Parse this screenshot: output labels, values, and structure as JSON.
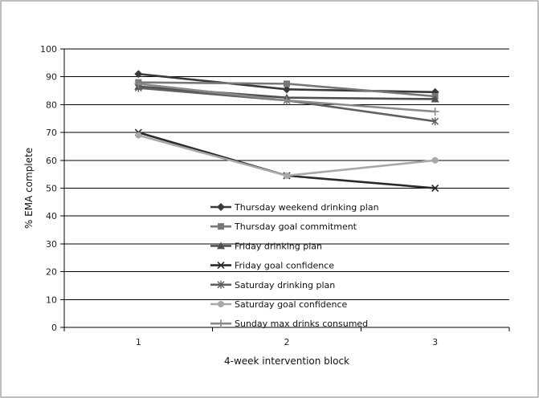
{
  "chart_data": {
    "type": "line",
    "title": "",
    "xlabel": "4-week intervention block",
    "ylabel": "% EMA  complete",
    "x": [
      1,
      2,
      3
    ],
    "x_tick_labels": [
      "1",
      "2",
      "3"
    ],
    "ylim": [
      0,
      100
    ],
    "y_ticks": [
      0,
      10,
      20,
      30,
      40,
      50,
      60,
      70,
      80,
      90,
      100
    ],
    "grid": "horizontal",
    "legend_position": "inside-bottom-center",
    "series": [
      {
        "name": "Thursday weekend drinking plan",
        "values": [
          91,
          85.5,
          84.5
        ],
        "color": "#3a3a3a",
        "marker": "diamond"
      },
      {
        "name": "Thursday goal commitment",
        "values": [
          88,
          87.5,
          83
        ],
        "color": "#777777",
        "marker": "square"
      },
      {
        "name": "Friday drinking plan",
        "values": [
          86.5,
          82.5,
          82
        ],
        "color": "#505050",
        "marker": "triangle"
      },
      {
        "name": "Friday goal confidence",
        "values": [
          70,
          54.5,
          50
        ],
        "color": "#2a2a2a",
        "marker": "x"
      },
      {
        "name": "Saturday drinking plan",
        "values": [
          86,
          81.5,
          74
        ],
        "color": "#606060",
        "marker": "star"
      },
      {
        "name": "Saturday goal confidence",
        "values": [
          69,
          54.5,
          60
        ],
        "color": "#a8a8a8",
        "marker": "circle"
      },
      {
        "name": "Sunday max drinks consumed",
        "values": [
          87.5,
          81.5,
          77.5
        ],
        "color": "#8a8a8a",
        "marker": "plus"
      }
    ]
  }
}
